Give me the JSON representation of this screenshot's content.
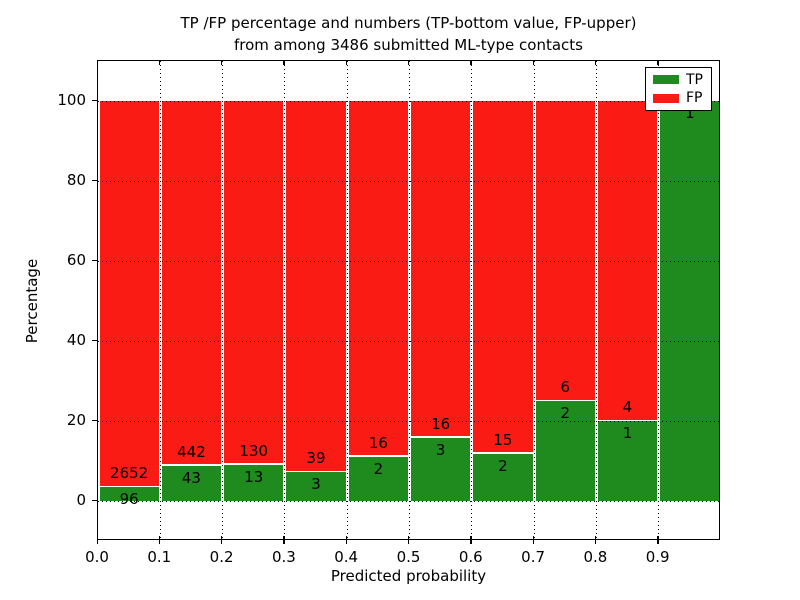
{
  "title": {
    "line1": "TP /FP percentage and numbers (TP-bottom value, FP-upper)",
    "line2": "from among 3486 submitted ML-type contacts"
  },
  "chart_data": {
    "type": "bar",
    "stacked": true,
    "normalized_to_percent": true,
    "title": "TP /FP percentage and numbers (TP-bottom value, FP-upper) from among 3486 submitted ML-type contacts",
    "xlabel": "Predicted probability",
    "ylabel": "Percentage",
    "total_contacts": 3486,
    "xlim": [
      0.0,
      1.0
    ],
    "ylim": [
      -10,
      110
    ],
    "grid": true,
    "x_ticks": [
      "0.0",
      "0.1",
      "0.2",
      "0.3",
      "0.4",
      "0.5",
      "0.6",
      "0.7",
      "0.8",
      "0.9"
    ],
    "y_ticks": [
      "0",
      "20",
      "40",
      "60",
      "80",
      "100"
    ],
    "y_tick_values": [
      0,
      20,
      40,
      60,
      80,
      100
    ],
    "bin_width": 0.1,
    "bin_starts": [
      0.0,
      0.1,
      0.2,
      0.3,
      0.4,
      0.5,
      0.6,
      0.7,
      0.8,
      0.9
    ],
    "series": [
      {
        "name": "TP",
        "color": "#1f8b1f",
        "counts": [
          96,
          43,
          13,
          3,
          2,
          3,
          2,
          2,
          1,
          1
        ]
      },
      {
        "name": "FP",
        "color": "#fb1b15",
        "counts": [
          2652,
          442,
          130,
          39,
          16,
          16,
          15,
          6,
          4,
          0
        ]
      }
    ],
    "tp_percent": [
      3.4934,
      8.866,
      9.0909,
      7.1429,
      11.1111,
      15.7895,
      11.7647,
      25.0,
      20.0,
      100.0
    ],
    "tp_labels": [
      "96",
      "43",
      "13",
      "3",
      "2",
      "3",
      "2",
      "2",
      "1",
      "1"
    ],
    "fp_labels": [
      "2652",
      "442",
      "130",
      "39",
      "16",
      "16",
      "15",
      "6",
      "4",
      ""
    ]
  },
  "legend": {
    "items": [
      {
        "label": "TP",
        "color": "#1f8b1f"
      },
      {
        "label": "FP",
        "color": "#fb1b15"
      }
    ]
  }
}
